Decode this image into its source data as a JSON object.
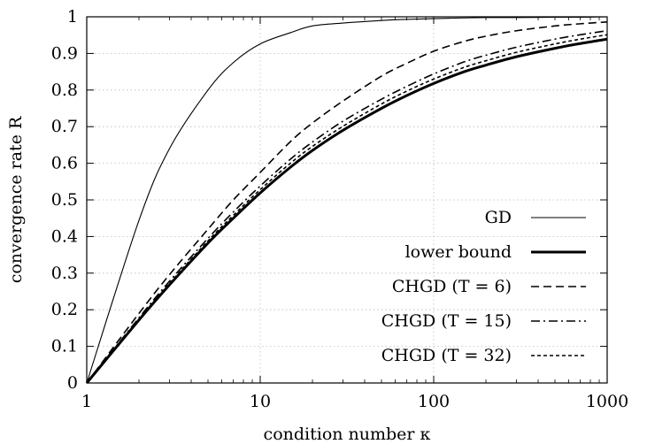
{
  "chart_data": {
    "type": "line",
    "xscale": "log",
    "xlim": [
      1,
      1000
    ],
    "ylim": [
      0,
      1
    ],
    "grid": true,
    "xlabel": "condition number κ",
    "ylabel": "convergence rate R",
    "x_ticks": [
      "1",
      "10",
      "100",
      "1000"
    ],
    "y_ticks": [
      "0",
      "0.1",
      "0.2",
      "0.3",
      "0.4",
      "0.5",
      "0.6",
      "0.7",
      "0.8",
      "0.9",
      "1"
    ],
    "legend_position": "bottom-right",
    "x": [
      1,
      2,
      3,
      5,
      7,
      10,
      15,
      20,
      30,
      50,
      70,
      100,
      150,
      200,
      300,
      500,
      700,
      1000
    ],
    "series": [
      {
        "name": "GD",
        "style": "thin-solid",
        "values": [
          0,
          0.444,
          0.64,
          0.8,
          0.875,
          0.926,
          0.957,
          0.975,
          0.983,
          0.99,
          0.993,
          0.995,
          0.997,
          0.998,
          0.998,
          0.999,
          0.999,
          1.0
        ]
      },
      {
        "name": "lower bound",
        "style": "thick-solid",
        "values": [
          0,
          0.172,
          0.268,
          0.382,
          0.45,
          0.519,
          0.59,
          0.635,
          0.69,
          0.75,
          0.785,
          0.818,
          0.85,
          0.868,
          0.891,
          0.914,
          0.927,
          0.939
        ]
      },
      {
        "name": "CHGD (T = 6)",
        "style": "dashed",
        "values": [
          0,
          0.19,
          0.296,
          0.42,
          0.5,
          0.575,
          0.66,
          0.71,
          0.77,
          0.838,
          0.873,
          0.906,
          0.933,
          0.947,
          0.962,
          0.975,
          0.981,
          0.986
        ]
      },
      {
        "name": "CHGD (T = 15)",
        "style": "dashdot",
        "values": [
          0,
          0.178,
          0.278,
          0.395,
          0.467,
          0.538,
          0.612,
          0.658,
          0.715,
          0.775,
          0.81,
          0.844,
          0.877,
          0.895,
          0.917,
          0.939,
          0.951,
          0.962
        ]
      },
      {
        "name": "CHGD (T = 32)",
        "style": "dotted",
        "values": [
          0,
          0.174,
          0.272,
          0.388,
          0.458,
          0.528,
          0.601,
          0.646,
          0.701,
          0.762,
          0.797,
          0.83,
          0.862,
          0.88,
          0.903,
          0.926,
          0.939,
          0.951
        ]
      }
    ]
  }
}
